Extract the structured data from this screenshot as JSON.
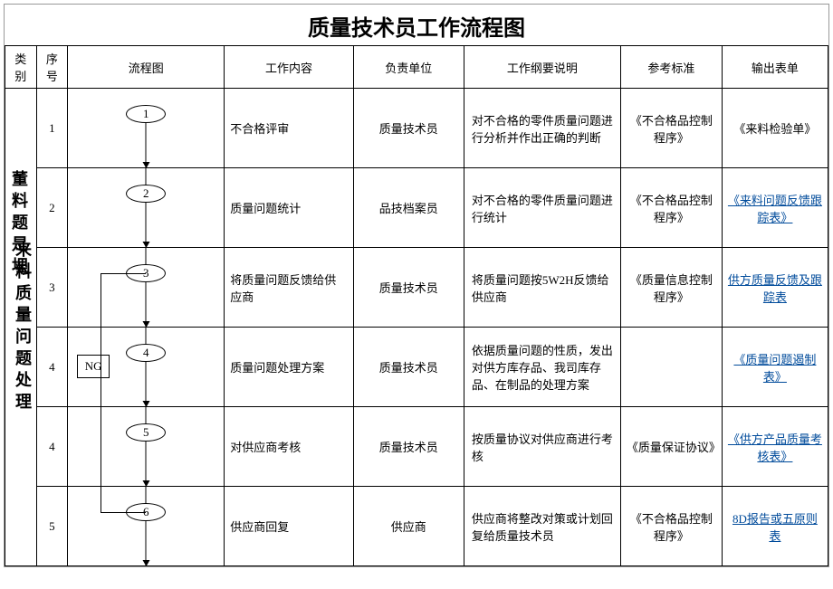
{
  "title": "质量技术员工作流程图",
  "headers": {
    "category": "类别",
    "seq": "序号",
    "flow": "流程图",
    "work": "工作内容",
    "unit": "负责单位",
    "desc": "工作纲要说明",
    "ref": "参考标准",
    "out": "输出表单"
  },
  "category_main": "来料质量问题处理",
  "category_overlay": "董料题是埋",
  "ng_label": "NG",
  "rows": [
    {
      "seq": "1",
      "node": "1",
      "work": "不合格评审",
      "unit": "质量技术员",
      "desc": "对不合格的零件质量问题进行分析并作出正确的判断",
      "ref": "《不合格品控制程序》",
      "out": "《来料检验单》",
      "out_link": false,
      "first": true
    },
    {
      "seq": "2",
      "node": "2",
      "work": "质量问题统计",
      "unit": "品技档案员",
      "desc": "对不合格的零件质量问题进行统计",
      "ref": "《不合格品控制程序》",
      "out": "《来料问题反馈跟踪表》",
      "out_link": true
    },
    {
      "seq": "3",
      "node": "3",
      "work": "将质量问题反馈给供应商",
      "unit": "质量技术员",
      "desc": "将质量问题按5W2H反馈给供应商",
      "ref": "《质量信息控制程序》",
      "out": "供方质量反馈及跟踪表",
      "out_link": true,
      "feedback_top": true
    },
    {
      "seq": "4",
      "node": "4",
      "work": "质量问题处理方案",
      "unit": "质量技术员",
      "desc": "依据质量问题的性质，发出对供方库存品、我司库存品、在制品的处理方案",
      "ref": "",
      "out": "《质量问题遏制表》",
      "out_link": true,
      "ng": true,
      "feedback_mid": true
    },
    {
      "seq": "4",
      "node": "5",
      "work": "对供应商考核",
      "unit": "质量技术员",
      "desc": "按质量协议对供应商进行考核",
      "ref": "《质量保证协议》",
      "out": "《供方产品质量考核表》",
      "out_link": true,
      "feedback_mid": true
    },
    {
      "seq": "5",
      "node": "6",
      "work": "供应商回复",
      "unit": "供应商",
      "desc": "供应商将整改对策或计划回复给质量技术员",
      "ref": "《不合格品控制程序》",
      "out": "8D报告或五原则表",
      "out_link": true,
      "feedback_bot": true
    }
  ]
}
